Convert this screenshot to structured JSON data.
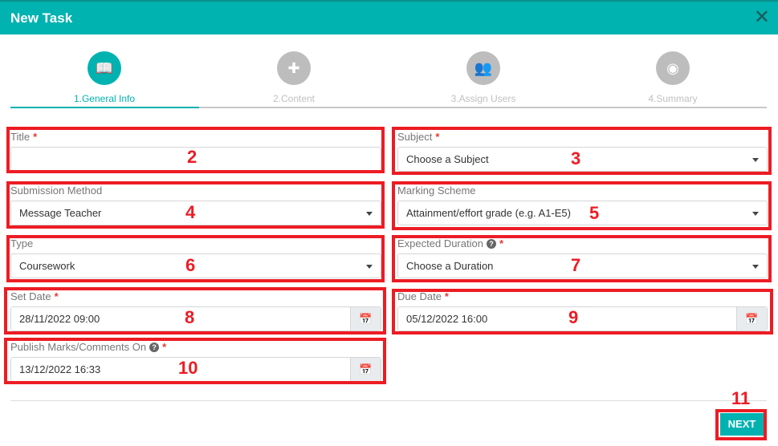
{
  "header": {
    "title": "New Task",
    "close_icon": "close-icon"
  },
  "steps": [
    {
      "label": "1.General Info",
      "icon": "book-reader-icon",
      "active": true
    },
    {
      "label": "2.Content",
      "icon": "puzzle-icon",
      "active": false
    },
    {
      "label": "3.Assign Users",
      "icon": "users-icon",
      "active": false
    },
    {
      "label": "4.Summary",
      "icon": "eye-icon",
      "active": false
    }
  ],
  "form": {
    "title": {
      "label": "Title",
      "required": "*",
      "value": ""
    },
    "subject": {
      "label": "Subject",
      "required": "*",
      "value": "Choose a Subject"
    },
    "submission_method": {
      "label": "Submission Method",
      "value": "Message Teacher"
    },
    "marking_scheme": {
      "label": "Marking Scheme",
      "value": "Attainment/effort grade (e.g. A1-E5)"
    },
    "type": {
      "label": "Type",
      "value": "Coursework"
    },
    "expected_duration": {
      "label": "Expected Duration",
      "help": "?",
      "required": "*",
      "value": "Choose a Duration"
    },
    "set_date": {
      "label": "Set Date",
      "required": "*",
      "value": "28/11/2022 09:00"
    },
    "due_date": {
      "label": "Due Date",
      "required": "*",
      "value": "05/12/2022 16:00"
    },
    "publish_marks": {
      "label": "Publish Marks/Comments On",
      "help": "?",
      "required": "*",
      "value": "13/12/2022 16:33"
    }
  },
  "footer": {
    "next_label": "NEXT"
  },
  "annotations": [
    "2",
    "3",
    "4",
    "5",
    "6",
    "7",
    "8",
    "9",
    "10",
    "11"
  ],
  "colors": {
    "accent": "#00b2b0",
    "annotation": "#ed1c24"
  }
}
